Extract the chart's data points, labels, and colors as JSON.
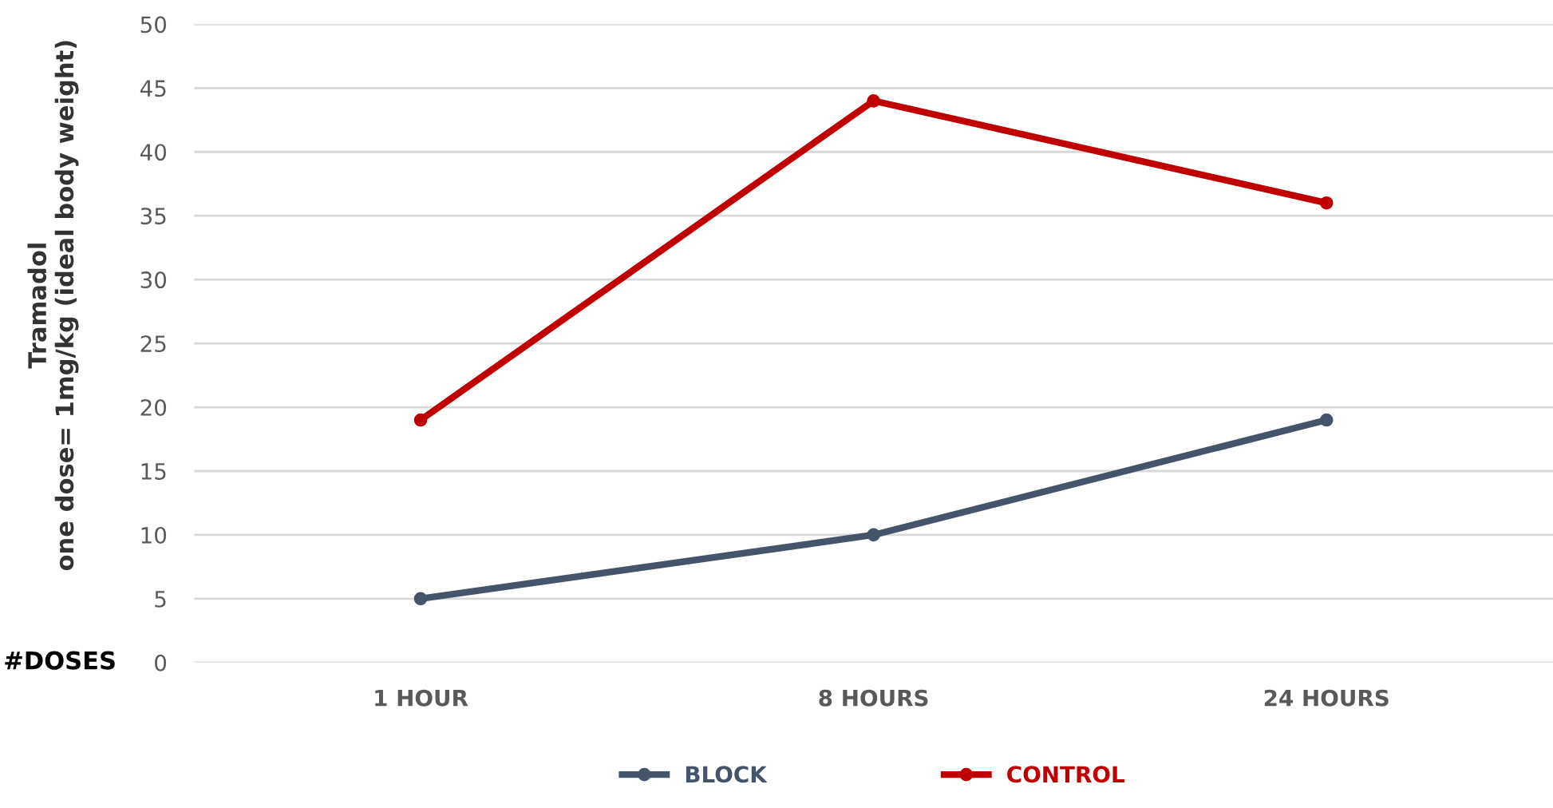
{
  "chart_data": {
    "type": "line",
    "ylabel": "Tramadol\none dose= 1mg/kg (ideal body weight)",
    "categories": [
      "1 HOUR",
      "8 HOURS",
      "24 HOURS"
    ],
    "series": [
      {
        "name": "BLOCK",
        "color": "#44546a",
        "values": [
          5,
          10,
          19
        ]
      },
      {
        "name": "CONTROL",
        "color": "#c00000",
        "values": [
          19,
          44,
          36
        ]
      }
    ],
    "ylim": [
      0,
      50
    ],
    "yticks": [
      0,
      5,
      10,
      15,
      20,
      25,
      30,
      35,
      40,
      45,
      50
    ],
    "grid": "y",
    "legend": "bottom",
    "marker": "circle",
    "line_style": "solid",
    "annotations": [
      "#DOSES"
    ]
  }
}
